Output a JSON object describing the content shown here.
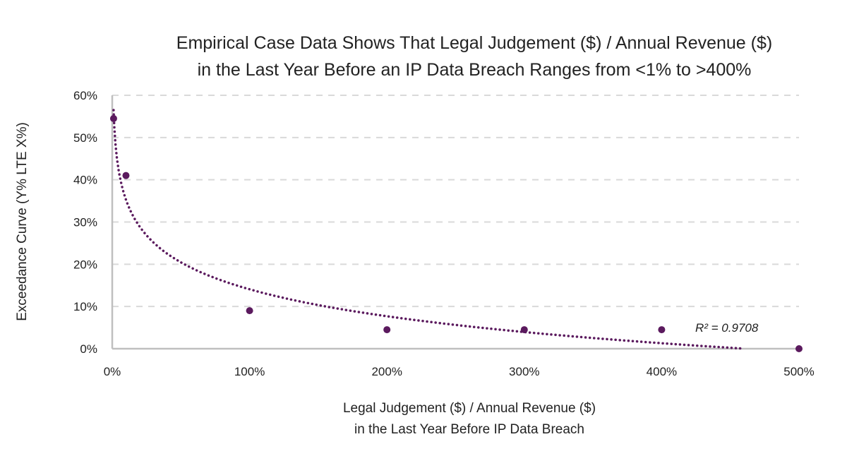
{
  "chart_data": {
    "type": "scatter",
    "title": [
      "Empirical Case Data Shows That Legal Judgement ($) / Annual Revenue ($)",
      "in the Last Year Before an IP Data Breach Ranges from <1% to >400%"
    ],
    "xlabel": [
      "Legal Judgement ($) / Annual Revenue ($)",
      "in the Last Year Before IP Data Breach"
    ],
    "ylabel": "Exceedance Curve (Y% LTE X%)",
    "xlim": [
      0,
      500
    ],
    "ylim": [
      0,
      60
    ],
    "x_ticks": [
      "0%",
      "100%",
      "200%",
      "300%",
      "400%",
      "500%"
    ],
    "y_ticks": [
      "0%",
      "10%",
      "20%",
      "30%",
      "40%",
      "50%",
      "60%"
    ],
    "grid": "horizontal dashed",
    "legend": "none",
    "color": "#5b1a5e",
    "points": [
      {
        "x": 1,
        "y": 54.5
      },
      {
        "x": 10,
        "y": 41
      },
      {
        "x": 100,
        "y": 9
      },
      {
        "x": 200,
        "y": 4.5
      },
      {
        "x": 300,
        "y": 4.5
      },
      {
        "x": 400,
        "y": 4.5
      },
      {
        "x": 500,
        "y": 0
      }
    ],
    "trendline": {
      "type": "logarithmic",
      "style": "dotted",
      "r2_label": "R² = 0.9708",
      "x_range": [
        1,
        460
      ]
    }
  }
}
